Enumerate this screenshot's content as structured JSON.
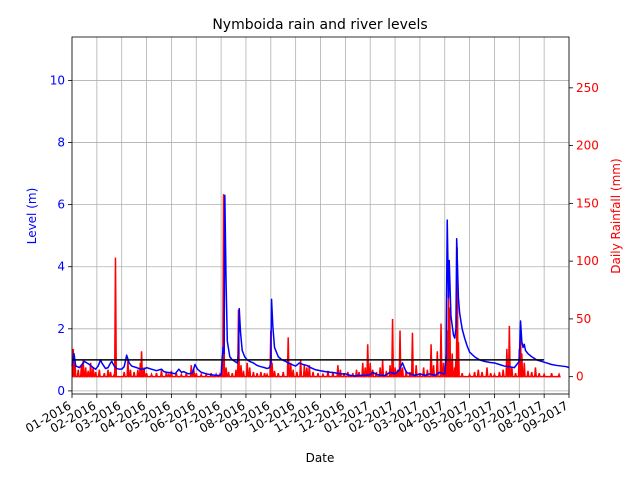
{
  "chart_data": {
    "type": "line",
    "title": "Nymboida rain and river levels",
    "xlabel": "Date",
    "ylabel_left": "Level (m)",
    "ylabel_right": "Daily Rainfall (mm)",
    "x_tick_labels": [
      "01-2016",
      "02-2016",
      "03-2016",
      "04-2016",
      "05-2016",
      "06-2016",
      "07-2016",
      "08-2016",
      "09-2016",
      "10-2016",
      "11-2016",
      "12-2016",
      "01-2017",
      "02-2017",
      "03-2017",
      "04-2017",
      "05-2017",
      "06-2017",
      "07-2017",
      "08-2017",
      "09-2017"
    ],
    "x_range_months": [
      0,
      20
    ],
    "y_left_ticks": [
      "0",
      "2",
      "4",
      "6",
      "8",
      "10"
    ],
    "y_left_range": [
      -0.1,
      11.4
    ],
    "y_right_ticks": [
      "0",
      "50",
      "100",
      "150",
      "200",
      "250"
    ],
    "y_right_range": [
      -15,
      294
    ],
    "grid": true,
    "threshold_level_m": 1.0,
    "colors": {
      "level": "#0000ff",
      "rainfall": "#ff0000",
      "threshold": "#000000",
      "left_axis": "#0000ff",
      "right_axis": "#ff0000",
      "grid": "#b0b0b0"
    },
    "series_level": {
      "comment_units": "x in months since 01-2016, y in metres",
      "points": [
        [
          0.0,
          0.8
        ],
        [
          0.08,
          1.2
        ],
        [
          0.15,
          0.8
        ],
        [
          0.3,
          0.75
        ],
        [
          0.5,
          0.95
        ],
        [
          0.7,
          0.85
        ],
        [
          0.85,
          0.75
        ],
        [
          0.95,
          0.7
        ],
        [
          1.05,
          0.8
        ],
        [
          1.15,
          1.0
        ],
        [
          1.2,
          0.9
        ],
        [
          1.35,
          0.72
        ],
        [
          1.45,
          0.75
        ],
        [
          1.55,
          0.9
        ],
        [
          1.6,
          0.95
        ],
        [
          1.7,
          0.8
        ],
        [
          1.8,
          0.72
        ],
        [
          1.9,
          0.7
        ],
        [
          2.0,
          0.7
        ],
        [
          2.1,
          0.78
        ],
        [
          2.2,
          1.15
        ],
        [
          2.3,
          0.9
        ],
        [
          2.4,
          0.8
        ],
        [
          2.6,
          0.75
        ],
        [
          2.75,
          0.7
        ],
        [
          2.9,
          0.7
        ],
        [
          3.0,
          0.75
        ],
        [
          3.2,
          0.7
        ],
        [
          3.4,
          0.65
        ],
        [
          3.6,
          0.7
        ],
        [
          3.7,
          0.62
        ],
        [
          3.8,
          0.6
        ],
        [
          4.0,
          0.58
        ],
        [
          4.15,
          0.55
        ],
        [
          4.3,
          0.7
        ],
        [
          4.4,
          0.6
        ],
        [
          4.5,
          0.62
        ],
        [
          4.6,
          0.58
        ],
        [
          4.7,
          0.55
        ],
        [
          4.85,
          0.58
        ],
        [
          4.95,
          0.85
        ],
        [
          5.05,
          0.7
        ],
        [
          5.2,
          0.6
        ],
        [
          5.4,
          0.55
        ],
        [
          5.6,
          0.52
        ],
        [
          5.8,
          0.5
        ],
        [
          5.95,
          0.5
        ],
        [
          6.0,
          0.52
        ],
        [
          6.08,
          1.4
        ],
        [
          6.12,
          1.2
        ],
        [
          6.15,
          6.3
        ],
        [
          6.2,
          3.5
        ],
        [
          6.25,
          1.6
        ],
        [
          6.35,
          1.1
        ],
        [
          6.45,
          1.0
        ],
        [
          6.55,
          0.95
        ],
        [
          6.65,
          0.9
        ],
        [
          6.7,
          1.2
        ],
        [
          6.73,
          2.65
        ],
        [
          6.78,
          1.9
        ],
        [
          6.85,
          1.3
        ],
        [
          6.95,
          1.1
        ],
        [
          7.05,
          1.0
        ],
        [
          7.15,
          0.95
        ],
        [
          7.3,
          0.9
        ],
        [
          7.45,
          0.82
        ],
        [
          7.6,
          0.78
        ],
        [
          7.75,
          0.75
        ],
        [
          7.85,
          0.72
        ],
        [
          7.95,
          0.75
        ],
        [
          8.0,
          0.9
        ],
        [
          8.03,
          2.95
        ],
        [
          8.08,
          2.1
        ],
        [
          8.15,
          1.4
        ],
        [
          8.3,
          1.1
        ],
        [
          8.45,
          1.0
        ],
        [
          8.6,
          0.95
        ],
        [
          8.7,
          0.9
        ],
        [
          8.85,
          0.85
        ],
        [
          9.0,
          0.8
        ],
        [
          9.15,
          0.9
        ],
        [
          9.3,
          0.85
        ],
        [
          9.45,
          0.82
        ],
        [
          9.6,
          0.75
        ],
        [
          9.8,
          0.68
        ],
        [
          10.0,
          0.65
        ],
        [
          10.2,
          0.62
        ],
        [
          10.4,
          0.6
        ],
        [
          10.6,
          0.58
        ],
        [
          10.8,
          0.55
        ],
        [
          11.0,
          0.55
        ],
        [
          11.2,
          0.5
        ],
        [
          11.4,
          0.48
        ],
        [
          11.6,
          0.5
        ],
        [
          11.8,
          0.5
        ],
        [
          12.0,
          0.52
        ],
        [
          12.1,
          0.6
        ],
        [
          12.2,
          0.55
        ],
        [
          12.4,
          0.5
        ],
        [
          12.6,
          0.5
        ],
        [
          12.8,
          0.6
        ],
        [
          13.0,
          0.55
        ],
        [
          13.15,
          0.65
        ],
        [
          13.3,
          0.9
        ],
        [
          13.45,
          0.6
        ],
        [
          13.6,
          0.55
        ],
        [
          13.8,
          0.5
        ],
        [
          14.0,
          0.55
        ],
        [
          14.2,
          0.5
        ],
        [
          14.4,
          0.55
        ],
        [
          14.6,
          0.5
        ],
        [
          14.8,
          0.6
        ],
        [
          14.95,
          0.55
        ],
        [
          15.0,
          0.55
        ],
        [
          15.05,
          1.0
        ],
        [
          15.1,
          5.5
        ],
        [
          15.15,
          3.0
        ],
        [
          15.18,
          4.2
        ],
        [
          15.25,
          2.4
        ],
        [
          15.35,
          1.8
        ],
        [
          15.4,
          1.7
        ],
        [
          15.45,
          2.0
        ],
        [
          15.48,
          4.9
        ],
        [
          15.55,
          3.0
        ],
        [
          15.6,
          2.5
        ],
        [
          15.7,
          2.0
        ],
        [
          15.8,
          1.7
        ],
        [
          15.9,
          1.45
        ],
        [
          16.0,
          1.25
        ],
        [
          16.2,
          1.1
        ],
        [
          16.4,
          1.0
        ],
        [
          16.6,
          0.95
        ],
        [
          16.8,
          0.92
        ],
        [
          17.0,
          0.9
        ],
        [
          17.2,
          0.85
        ],
        [
          17.4,
          0.8
        ],
        [
          17.6,
          0.78
        ],
        [
          17.8,
          0.75
        ],
        [
          18.0,
          0.95
        ],
        [
          18.05,
          2.25
        ],
        [
          18.1,
          1.6
        ],
        [
          18.15,
          1.4
        ],
        [
          18.2,
          1.5
        ],
        [
          18.25,
          1.3
        ],
        [
          18.35,
          1.2
        ],
        [
          18.5,
          1.1
        ],
        [
          18.7,
          1.0
        ],
        [
          18.9,
          0.95
        ],
        [
          19.1,
          0.9
        ],
        [
          19.3,
          0.85
        ],
        [
          19.5,
          0.82
        ],
        [
          19.7,
          0.8
        ],
        [
          19.9,
          0.78
        ],
        [
          20.0,
          0.75
        ]
      ]
    },
    "series_rainfall": {
      "comment_units": "x in months since 01-2016, y in mm",
      "spikes": [
        [
          0.05,
          24
        ],
        [
          0.12,
          12
        ],
        [
          0.25,
          6
        ],
        [
          0.38,
          10
        ],
        [
          0.45,
          14
        ],
        [
          0.55,
          8
        ],
        [
          0.65,
          5
        ],
        [
          0.75,
          12
        ],
        [
          0.85,
          8
        ],
        [
          0.95,
          4
        ],
        [
          1.1,
          6
        ],
        [
          1.3,
          3
        ],
        [
          1.45,
          6
        ],
        [
          1.55,
          4
        ],
        [
          1.7,
          2
        ],
        [
          1.75,
          103
        ],
        [
          2.1,
          4
        ],
        [
          2.25,
          14
        ],
        [
          2.35,
          6
        ],
        [
          2.5,
          4
        ],
        [
          2.65,
          6
        ],
        [
          2.75,
          12
        ],
        [
          2.8,
          22
        ],
        [
          2.9,
          8
        ],
        [
          3.0,
          3
        ],
        [
          3.2,
          2
        ],
        [
          3.4,
          3
        ],
        [
          3.6,
          5
        ],
        [
          3.8,
          4
        ],
        [
          3.9,
          2
        ],
        [
          4.0,
          5
        ],
        [
          4.2,
          3
        ],
        [
          4.4,
          2
        ],
        [
          4.6,
          3
        ],
        [
          4.8,
          10
        ],
        [
          4.9,
          6
        ],
        [
          5.0,
          3
        ],
        [
          5.2,
          2
        ],
        [
          5.4,
          2
        ],
        [
          5.6,
          3
        ],
        [
          5.8,
          2
        ],
        [
          5.95,
          2
        ],
        [
          6.05,
          4
        ],
        [
          6.1,
          158
        ],
        [
          6.2,
          8
        ],
        [
          6.3,
          4
        ],
        [
          6.45,
          3
        ],
        [
          6.6,
          6
        ],
        [
          6.7,
          58
        ],
        [
          6.8,
          10
        ],
        [
          6.9,
          5
        ],
        [
          7.05,
          12
        ],
        [
          7.15,
          8
        ],
        [
          7.3,
          4
        ],
        [
          7.45,
          3
        ],
        [
          7.6,
          4
        ],
        [
          7.75,
          3
        ],
        [
          7.85,
          2
        ],
        [
          8.0,
          40
        ],
        [
          8.05,
          12
        ],
        [
          8.15,
          5
        ],
        [
          8.3,
          3
        ],
        [
          8.5,
          4
        ],
        [
          8.7,
          34
        ],
        [
          8.8,
          12
        ],
        [
          8.9,
          6
        ],
        [
          9.05,
          4
        ],
        [
          9.2,
          15
        ],
        [
          9.35,
          10
        ],
        [
          9.45,
          8
        ],
        [
          9.55,
          10
        ],
        [
          9.7,
          4
        ],
        [
          9.9,
          3
        ],
        [
          10.1,
          2
        ],
        [
          10.3,
          5
        ],
        [
          10.5,
          4
        ],
        [
          10.7,
          10
        ],
        [
          10.8,
          6
        ],
        [
          10.95,
          3
        ],
        [
          11.1,
          4
        ],
        [
          11.3,
          3
        ],
        [
          11.45,
          6
        ],
        [
          11.55,
          4
        ],
        [
          11.7,
          12
        ],
        [
          11.8,
          8
        ],
        [
          11.9,
          28
        ],
        [
          12.0,
          12
        ],
        [
          12.1,
          6
        ],
        [
          12.25,
          4
        ],
        [
          12.4,
          8
        ],
        [
          12.5,
          14
        ],
        [
          12.65,
          5
        ],
        [
          12.8,
          10
        ],
        [
          12.9,
          50
        ],
        [
          13.0,
          8
        ],
        [
          13.1,
          6
        ],
        [
          13.2,
          40
        ],
        [
          13.3,
          8
        ],
        [
          13.45,
          5
        ],
        [
          13.6,
          4
        ],
        [
          13.7,
          38
        ],
        [
          13.85,
          10
        ],
        [
          14.0,
          3
        ],
        [
          14.15,
          8
        ],
        [
          14.3,
          6
        ],
        [
          14.45,
          28
        ],
        [
          14.55,
          10
        ],
        [
          14.7,
          22
        ],
        [
          14.85,
          46
        ],
        [
          14.95,
          12
        ],
        [
          15.05,
          18
        ],
        [
          15.1,
          40
        ],
        [
          15.15,
          72
        ],
        [
          15.2,
          60
        ],
        [
          15.3,
          20
        ],
        [
          15.4,
          8
        ],
        [
          15.45,
          15
        ],
        [
          15.5,
          112
        ],
        [
          15.55,
          30
        ],
        [
          15.7,
          3
        ],
        [
          16.0,
          2
        ],
        [
          16.2,
          4
        ],
        [
          16.35,
          6
        ],
        [
          16.5,
          4
        ],
        [
          16.7,
          8
        ],
        [
          16.85,
          3
        ],
        [
          17.0,
          2
        ],
        [
          17.2,
          4
        ],
        [
          17.35,
          6
        ],
        [
          17.5,
          24
        ],
        [
          17.6,
          44
        ],
        [
          17.7,
          8
        ],
        [
          17.85,
          3
        ],
        [
          18.0,
          24
        ],
        [
          18.05,
          36
        ],
        [
          18.1,
          20
        ],
        [
          18.2,
          12
        ],
        [
          18.35,
          5
        ],
        [
          18.5,
          4
        ],
        [
          18.65,
          8
        ],
        [
          18.8,
          3
        ],
        [
          19.0,
          2
        ],
        [
          19.3,
          3
        ],
        [
          19.6,
          2
        ]
      ]
    }
  }
}
